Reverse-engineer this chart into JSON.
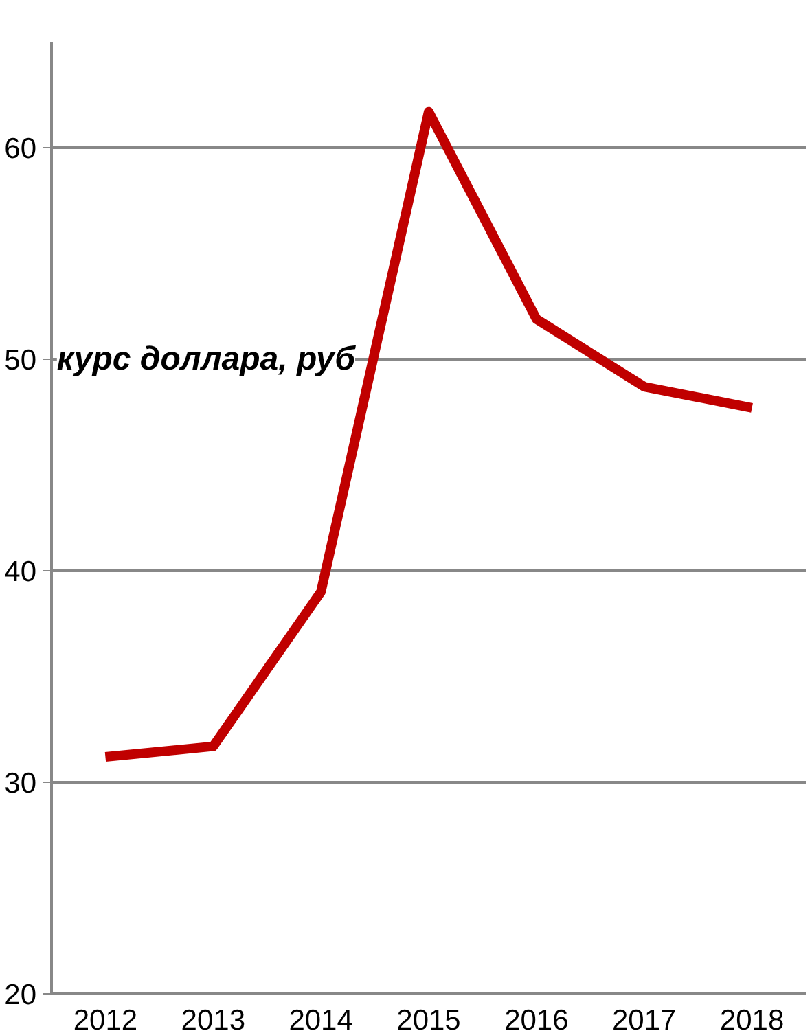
{
  "chart_data": {
    "type": "line",
    "title": "курс доллара, руб",
    "categories": [
      "2012",
      "2013",
      "2014",
      "2015",
      "2016",
      "2017",
      "2018"
    ],
    "series": [
      {
        "color": "#c00000",
        "values": [
          31.2,
          31.7,
          39.0,
          61.7,
          51.9,
          48.7,
          47.7
        ]
      }
    ],
    "ylim": [
      20,
      65
    ],
    "yticks": [
      20,
      30,
      40,
      50,
      60
    ],
    "grid": "y",
    "marker": "none",
    "line_style": "solid"
  }
}
